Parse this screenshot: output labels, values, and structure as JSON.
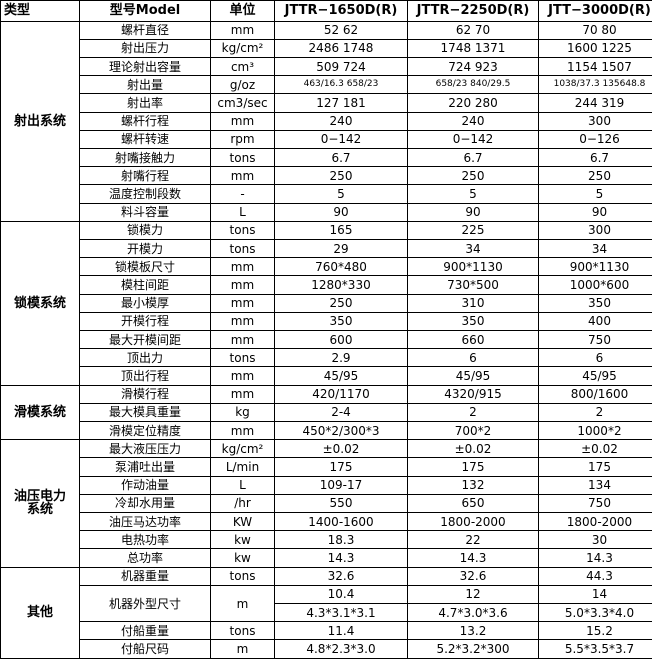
{
  "header": [
    "类型",
    "型号Model",
    "单位",
    "JTTR−1650D(R)",
    "JTTR−2250D(R)",
    "JTT−3000D(R)"
  ],
  "sections": [
    {
      "name": "射出系统",
      "rows": [
        [
          "螺杆直径",
          "mm",
          "52 62",
          "62 70",
          "70 80"
        ],
        [
          "射出压力",
          "kg/cm²",
          "2486 1748",
          "1748 1371",
          "1600 1225"
        ],
        [
          "理论射出容量",
          "cm³",
          "509 724",
          "724 923",
          "1154 1507"
        ],
        [
          "射出量",
          "g/oz",
          "463/16.3 658/23",
          "658/23 840/29.5",
          "1038/37.3 135648.8"
        ],
        [
          "射出率",
          "cm3/sec",
          "127 181",
          "220 280",
          "244 319"
        ],
        [
          "螺杆行程",
          "mm",
          "240",
          "240",
          "300"
        ],
        [
          "螺杆转速",
          "rpm",
          "0−142",
          "0−142",
          "0−126"
        ],
        [
          "射嘴接触力",
          "tons",
          "6.7",
          "6.7",
          "6.7"
        ],
        [
          "射嘴行程",
          "mm",
          "250",
          "250",
          "250"
        ],
        [
          "温度控制段数",
          "-",
          "5",
          "5",
          "5"
        ],
        [
          "料斗容量",
          "L",
          "90",
          "90",
          "90"
        ]
      ]
    },
    {
      "name": "锁模系统",
      "rows": [
        [
          "锁模力",
          "tons",
          "165",
          "225",
          "300"
        ],
        [
          "开模力",
          "tons",
          "29",
          "34",
          "34"
        ],
        [
          "锁模板尺寸",
          "mm",
          "760*480",
          "900*1130",
          "900*1130"
        ],
        [
          "模柱间距",
          "mm",
          "1280*330",
          "730*500",
          "1000*600"
        ],
        [
          "最小模厚",
          "mm",
          "250",
          "310",
          "350"
        ],
        [
          "开模行程",
          "mm",
          "350",
          "350",
          "400"
        ],
        [
          "最大开模间距",
          "mm",
          "600",
          "660",
          "750"
        ],
        [
          "顶出力",
          "tons",
          "2.9",
          "6",
          "6"
        ],
        [
          "顶出行程",
          "mm",
          "45/95",
          "45/95",
          "45/95"
        ]
      ]
    },
    {
      "name": "滑模系统",
      "rows": [
        [
          "滑模行程",
          "mm",
          "420/1170",
          "4320/915",
          "800/1600"
        ],
        [
          "最大模具重量",
          "kg",
          "2-4",
          "2",
          "2"
        ],
        [
          "滑模定位精度",
          "mm",
          "450*2/300*3",
          "700*2",
          "1000*2"
        ]
      ]
    },
    {
      "name": "油压电力系统",
      "rows": [
        [
          "最大液压压力",
          "kg/cm²",
          "±0.02",
          "±0.02",
          "±0.02"
        ],
        [
          "泵浦吐出量",
          "L/min",
          "175",
          "175",
          "175"
        ],
        [
          "作动油量",
          "L",
          "109-17",
          "132",
          "134"
        ],
        [
          "冷却水用量",
          "/hr",
          "550",
          "650",
          "750"
        ],
        [
          "油压马达功率",
          "KW",
          "1400-1600",
          "1800-2000",
          "1800-2000"
        ],
        [
          "电热功率",
          "kw",
          "18.3",
          "22",
          "30"
        ],
        [
          "总功率",
          "kw",
          "14.3",
          "14.3",
          "14.3"
        ]
      ]
    },
    {
      "name": "其他",
      "rows": [
        [
          "机器重量",
          "tons",
          "32.6",
          "32.6",
          "44.3"
        ],
        [
          "机器外型尺寸",
          "m",
          [
            "10.4",
            "4.3*3.1*3.1"
          ],
          [
            "12",
            "4.7*3.0*3.6"
          ],
          [
            "14",
            "5.0*3.3*4.0"
          ]
        ],
        [
          "付船重量",
          "tons",
          "11.4",
          "13.2",
          "15.2"
        ],
        [
          "付船尺码",
          "m",
          "4.8*2.3*3.0",
          "5.2*3.2*300",
          "5.5*3.5*3.7"
        ]
      ]
    }
  ]
}
